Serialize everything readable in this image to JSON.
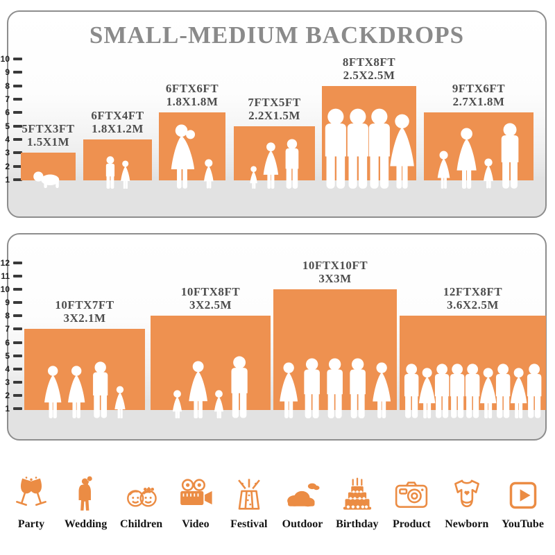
{
  "title": "SMALL-MEDIUM BACKDROPS",
  "colors": {
    "bar_orange": "#EE9150",
    "icon_orange": "#EB8C44",
    "title_gray": "#8A8A8A",
    "size_label_gray": "#4D4D4D",
    "floor_gray": "#E2E2E2",
    "panel_border": "#8D8D8D",
    "ruler_tick": "#3A3A3A",
    "category_text": "#141414",
    "silhouette": "#FFFFFF"
  },
  "panels": [
    {
      "ruler": {
        "min": 1,
        "max": 10,
        "unit": "ft"
      },
      "bars": [
        {
          "size_ft": "5FTX3FT",
          "size_m": "1.5X1M",
          "width_ft": 5,
          "height_ft": 3,
          "figures": [
            "crawling-baby"
          ]
        },
        {
          "size_ft": "6FTX4FT",
          "size_m": "1.8X1.2M",
          "width_ft": 6,
          "height_ft": 4,
          "figures": [
            "boy",
            "girl"
          ]
        },
        {
          "size_ft": "6FTX6FT",
          "size_m": "1.8X1.8M",
          "width_ft": 6,
          "height_ft": 6,
          "figures": [
            "woman-with-baby",
            "toddler-girl"
          ]
        },
        {
          "size_ft": "7FTX5FT",
          "size_m": "2.2X1.5M",
          "width_ft": 7,
          "height_ft": 5,
          "figures": [
            "toddler-girl",
            "woman",
            "man"
          ]
        },
        {
          "size_ft": "8FTX8FT",
          "size_m": "2.5X2.5M",
          "width_ft": 8,
          "height_ft": 8,
          "figures": [
            "man",
            "man",
            "man",
            "woman"
          ]
        },
        {
          "size_ft": "9FTX6FT",
          "size_m": "2.7X1.8M",
          "width_ft": 9,
          "height_ft": 6,
          "figures": [
            "girl",
            "woman",
            "toddler-girl",
            "man"
          ]
        }
      ]
    },
    {
      "ruler": {
        "min": 1,
        "max": 12,
        "unit": "ft"
      },
      "bars": [
        {
          "size_ft": "10FTX7FT",
          "size_m": "3X2.1M",
          "width_ft": 10,
          "height_ft": 7,
          "figures": [
            "woman",
            "woman",
            "man",
            "girl"
          ]
        },
        {
          "size_ft": "10FTX8FT",
          "size_m": "3X2.5M",
          "width_ft": 10,
          "height_ft": 8,
          "figures": [
            "toddler-girl",
            "woman",
            "toddler-girl",
            "man"
          ]
        },
        {
          "size_ft": "10FTX10FT",
          "size_m": "3X3M",
          "width_ft": 10,
          "height_ft": 10,
          "figures": [
            "woman",
            "man",
            "man",
            "man",
            "woman"
          ]
        },
        {
          "size_ft": "12FTX8FT",
          "size_m": "3.6X2.5M",
          "width_ft": 12,
          "height_ft": 8,
          "figures": [
            "man",
            "woman",
            "man",
            "man",
            "man",
            "woman",
            "man",
            "woman",
            "man"
          ]
        }
      ]
    }
  ],
  "categories": [
    {
      "label": "Party",
      "icon": "party-icon"
    },
    {
      "label": "Wedding",
      "icon": "wedding-icon"
    },
    {
      "label": "Children",
      "icon": "children-icon"
    },
    {
      "label": "Video",
      "icon": "video-icon"
    },
    {
      "label": "Festival",
      "icon": "festival-icon"
    },
    {
      "label": "Outdoor",
      "icon": "outdoor-icon"
    },
    {
      "label": "Birthday",
      "icon": "birthday-icon"
    },
    {
      "label": "Product",
      "icon": "product-icon"
    },
    {
      "label": "Newborn",
      "icon": "newborn-icon"
    },
    {
      "label": "YouTube",
      "icon": "youtube-icon"
    }
  ],
  "chart_data": [
    {
      "type": "bar",
      "title": "SMALL-MEDIUM BACKDROPS",
      "categories": [
        "5FTX3FT",
        "6FTX4FT",
        "6FTX6FT",
        "7FTX5FT",
        "8FTX8FT",
        "9FTX6FT"
      ],
      "series": [
        {
          "name": "height_ft",
          "values": [
            3,
            4,
            6,
            5,
            8,
            6
          ]
        },
        {
          "name": "width_ft",
          "values": [
            5,
            6,
            6,
            7,
            8,
            9
          ]
        }
      ],
      "metric_labels": [
        "1.5X1M",
        "1.8X1.2M",
        "1.8X1.8M",
        "2.2X1.5M",
        "2.5X2.5M",
        "2.7X1.8M"
      ],
      "xlabel": "",
      "ylabel": "feet",
      "ylim": [
        1,
        10
      ],
      "grid": false,
      "legend_position": "none"
    },
    {
      "type": "bar",
      "title": "",
      "categories": [
        "10FTX7FT",
        "10FTX8FT",
        "10FTX10FT",
        "12FTX8FT"
      ],
      "series": [
        {
          "name": "height_ft",
          "values": [
            7,
            8,
            10,
            8
          ]
        },
        {
          "name": "width_ft",
          "values": [
            10,
            10,
            10,
            12
          ]
        }
      ],
      "metric_labels": [
        "3X2.1M",
        "3X2.5M",
        "3X3M",
        "3.6X2.5M"
      ],
      "xlabel": "",
      "ylabel": "feet",
      "ylim": [
        1,
        12
      ],
      "grid": false,
      "legend_position": "none"
    }
  ]
}
